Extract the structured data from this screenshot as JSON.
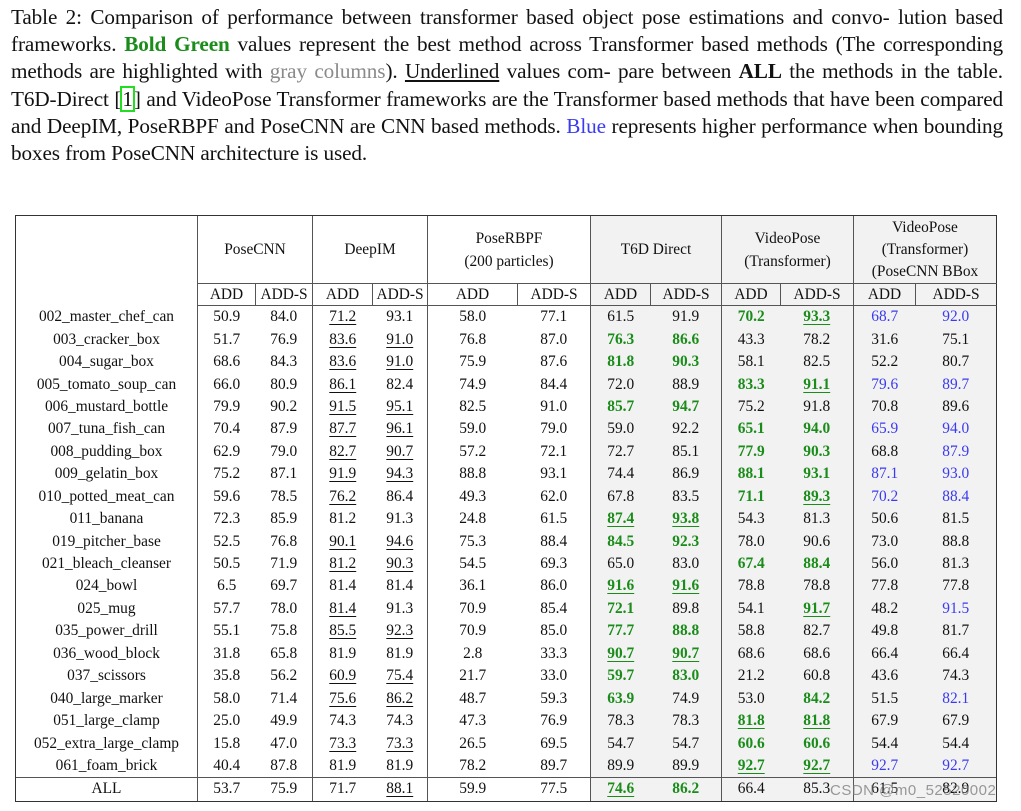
{
  "caption": {
    "p1": "Table 2: Comparison of performance between transformer based object pose estimations and convo- lution based frameworks. ",
    "green_label": "Bold Green",
    "p2": " values represent the best method across Transformer based methods (The corresponding methods are highlighted with ",
    "gray_label": "gray columns",
    "p3": "). ",
    "underline_label": "Underlined",
    "p4": " values com- pare between ",
    "bold_label": "ALL",
    "p5": " the methods in the table. T6D-Direct [",
    "citation": "1",
    "p6": "] and VideoPose Transformer frameworks are the Transformer based methods that have been compared and DeepIM, PoseRBPF and PoseCNN are CNN based methods. ",
    "blue_label": "Blue",
    "p7": " represents higher performance when bounding boxes from PoseCNN architecture is used."
  },
  "colors": {
    "best_green": "#1a8c1a",
    "posecnn_bbox_blue": "#3a3af0",
    "gray_column": "#f2f2f2"
  },
  "table": {
    "methods": [
      {
        "name": "PoseCNN",
        "shaded": false
      },
      {
        "name": "DeepIM",
        "shaded": false
      },
      {
        "name": "PoseRBPF",
        "line2": "(200 particles)",
        "shaded": false
      },
      {
        "name": "T6D Direct",
        "shaded": true
      },
      {
        "name": "VideoPose",
        "line2": "(Transformer)",
        "shaded": true
      },
      {
        "name": "VideoPose",
        "line2": "(Transformer)",
        "line3": "(PoseCNN BBox",
        "shaded": true
      }
    ],
    "metrics": [
      "ADD",
      "ADD-S"
    ],
    "rows": [
      {
        "object": "002_master_chef_can",
        "values": [
          "50.9",
          "84.0",
          "71.2",
          "93.1",
          "58.0",
          "77.1",
          "61.5",
          "91.9",
          "70.2",
          "93.3",
          "68.7",
          "92.0"
        ]
      },
      {
        "object": "003_cracker_box",
        "values": [
          "51.7",
          "76.9",
          "83.6",
          "91.0",
          "76.8",
          "87.0",
          "76.3",
          "86.6",
          "43.3",
          "78.2",
          "31.6",
          "75.1"
        ]
      },
      {
        "object": "004_sugar_box",
        "values": [
          "68.6",
          "84.3",
          "83.6",
          "91.0",
          "75.9",
          "87.6",
          "81.8",
          "90.3",
          "58.1",
          "82.5",
          "52.2",
          "80.7"
        ]
      },
      {
        "object": "005_tomato_soup_can",
        "values": [
          "66.0",
          "80.9",
          "86.1",
          "82.4",
          "74.9",
          "84.4",
          "72.0",
          "88.9",
          "83.3",
          "91.1",
          "79.6",
          "89.7"
        ]
      },
      {
        "object": "006_mustard_bottle",
        "values": [
          "79.9",
          "90.2",
          "91.5",
          "95.1",
          "82.5",
          "91.0",
          "85.7",
          "94.7",
          "75.2",
          "91.8",
          "70.8",
          "89.6"
        ]
      },
      {
        "object": "007_tuna_fish_can",
        "values": [
          "70.4",
          "87.9",
          "87.7",
          "96.1",
          "59.0",
          "79.0",
          "59.0",
          "92.2",
          "65.1",
          "94.0",
          "65.9",
          "94.0"
        ]
      },
      {
        "object": "008_pudding_box",
        "values": [
          "62.9",
          "79.0",
          "82.7",
          "90.7",
          "57.2",
          "72.1",
          "72.7",
          "85.1",
          "77.9",
          "90.3",
          "68.8",
          "87.9"
        ]
      },
      {
        "object": "009_gelatin_box",
        "values": [
          "75.2",
          "87.1",
          "91.9",
          "94.3",
          "88.8",
          "93.1",
          "74.4",
          "86.9",
          "88.1",
          "93.1",
          "87.1",
          "93.0"
        ]
      },
      {
        "object": "010_potted_meat_can",
        "values": [
          "59.6",
          "78.5",
          "76.2",
          "86.4",
          "49.3",
          "62.0",
          "67.8",
          "83.5",
          "71.1",
          "89.3",
          "70.2",
          "88.4"
        ]
      },
      {
        "object": "011_banana",
        "values": [
          "72.3",
          "85.9",
          "81.2",
          "91.3",
          "24.8",
          "61.5",
          "87.4",
          "93.8",
          "54.3",
          "81.3",
          "50.6",
          "81.5"
        ]
      },
      {
        "object": "019_pitcher_base",
        "values": [
          "52.5",
          "76.8",
          "90.1",
          "94.6",
          "75.3",
          "88.4",
          "84.5",
          "92.3",
          "78.0",
          "90.6",
          "73.0",
          "88.8"
        ]
      },
      {
        "object": "021_bleach_cleanser",
        "values": [
          "50.5",
          "71.9",
          "81.2",
          "90.3",
          "54.5",
          "69.3",
          "65.0",
          "83.0",
          "67.4",
          "88.4",
          "56.0",
          "81.3"
        ]
      },
      {
        "object": "024_bowl",
        "values": [
          "6.5",
          "69.7",
          "81.4",
          "81.4",
          "36.1",
          "86.0",
          "91.6",
          "91.6",
          "78.8",
          "78.8",
          "77.8",
          "77.8"
        ]
      },
      {
        "object": "025_mug",
        "values": [
          "57.7",
          "78.0",
          "81.4",
          "91.3",
          "70.9",
          "85.4",
          "72.1",
          "89.8",
          "54.1",
          "91.7",
          "48.2",
          "91.5"
        ]
      },
      {
        "object": "035_power_drill",
        "values": [
          "55.1",
          "75.8",
          "85.5",
          "92.3",
          "70.9",
          "85.0",
          "77.7",
          "88.8",
          "58.8",
          "82.7",
          "49.8",
          "81.7"
        ]
      },
      {
        "object": "036_wood_block",
        "values": [
          "31.8",
          "65.8",
          "81.9",
          "81.9",
          "2.8",
          "33.3",
          "90.7",
          "90.7",
          "68.6",
          "68.6",
          "66.4",
          "66.4"
        ]
      },
      {
        "object": "037_scissors",
        "values": [
          "35.8",
          "56.2",
          "60.9",
          "75.4",
          "21.7",
          "33.0",
          "59.7",
          "83.0",
          "21.2",
          "60.8",
          "43.6",
          "74.3"
        ]
      },
      {
        "object": "040_large_marker",
        "values": [
          "58.0",
          "71.4",
          "75.6",
          "86.2",
          "48.7",
          "59.3",
          "63.9",
          "74.9",
          "53.0",
          "84.2",
          "51.5",
          "82.1"
        ]
      },
      {
        "object": "051_large_clamp",
        "values": [
          "25.0",
          "49.9",
          "74.3",
          "74.3",
          "47.3",
          "76.9",
          "78.3",
          "78.3",
          "81.8",
          "81.8",
          "67.9",
          "67.9"
        ]
      },
      {
        "object": "052_extra_large_clamp",
        "values": [
          "15.8",
          "47.0",
          "73.3",
          "73.3",
          "26.5",
          "69.5",
          "54.7",
          "54.7",
          "60.6",
          "60.6",
          "54.4",
          "54.4"
        ]
      },
      {
        "object": "061_foam_brick",
        "values": [
          "40.4",
          "87.8",
          "81.9",
          "81.9",
          "78.2",
          "89.7",
          "89.9",
          "89.9",
          "92.7",
          "92.7",
          "92.7",
          "92.7"
        ]
      }
    ],
    "total": {
      "object": "ALL",
      "values": [
        "53.7",
        "75.9",
        "71.7",
        "88.1",
        "59.9",
        "77.5",
        "74.6",
        "86.2",
        "66.4",
        "85.3",
        "61.5",
        "82.9"
      ]
    },
    "styles_legend": {
      "g": "bold green (best transformer)",
      "u": "underlined (best overall)",
      "b": "blue (PoseCNN bbox higher)"
    },
    "cell_styles": [
      [
        "",
        "",
        "u",
        "",
        "",
        "",
        "",
        "",
        "g",
        "g u",
        "b",
        "b"
      ],
      [
        "",
        "",
        "u",
        "u",
        "",
        "",
        "g",
        "g",
        "",
        "",
        "",
        ""
      ],
      [
        "",
        "",
        "u",
        "u",
        "",
        "",
        "g",
        "g",
        "",
        "",
        "",
        ""
      ],
      [
        "",
        "",
        "u",
        "",
        "",
        "",
        "",
        "",
        "g",
        "g u",
        "b",
        "b"
      ],
      [
        "",
        "",
        "u",
        "u",
        "",
        "",
        "g",
        "g",
        "",
        "",
        "",
        ""
      ],
      [
        "",
        "",
        "u",
        "u",
        "",
        "",
        "",
        "",
        "g",
        "g",
        "b",
        "b"
      ],
      [
        "",
        "",
        "u",
        "u",
        "",
        "",
        "",
        "",
        "g",
        "g",
        "",
        "b"
      ],
      [
        "",
        "",
        "u",
        "u",
        "",
        "",
        "",
        "",
        "g",
        "g",
        "b",
        "b"
      ],
      [
        "",
        "",
        "u",
        "",
        "",
        "",
        "",
        "",
        "g",
        "g u",
        "b",
        "b"
      ],
      [
        "",
        "",
        "",
        "",
        "",
        "",
        "g u",
        "g u",
        "",
        "",
        "",
        ""
      ],
      [
        "",
        "",
        "u",
        "u",
        "",
        "",
        "g",
        "g",
        "",
        "",
        "",
        ""
      ],
      [
        "",
        "",
        "u",
        "u",
        "",
        "",
        "",
        "",
        "g",
        "g",
        "",
        ""
      ],
      [
        "",
        "",
        "",
        "",
        "",
        "",
        "g u",
        "g u",
        "",
        "",
        "",
        ""
      ],
      [
        "",
        "",
        "u",
        "",
        "",
        "",
        "g",
        "",
        "",
        "g u",
        "",
        "b"
      ],
      [
        "",
        "",
        "u",
        "u",
        "",
        "",
        "g",
        "g",
        "",
        "",
        "",
        ""
      ],
      [
        "",
        "",
        "",
        "",
        "",
        "",
        "g u",
        "g u",
        "",
        "",
        "",
        ""
      ],
      [
        "",
        "",
        "u",
        "u",
        "",
        "",
        "g",
        "g",
        "",
        "",
        "",
        ""
      ],
      [
        "",
        "",
        "u",
        "u",
        "",
        "",
        "g",
        "",
        "",
        "g",
        "",
        "b"
      ],
      [
        "",
        "",
        "",
        "",
        "",
        "",
        "",
        "",
        "g u",
        "g u",
        "",
        ""
      ],
      [
        "",
        "",
        "u",
        "u",
        "",
        "",
        "",
        "",
        "g",
        "g",
        "",
        ""
      ],
      [
        "",
        "",
        "",
        "",
        "",
        "",
        "",
        "",
        "g u",
        "g u",
        "b",
        "b"
      ]
    ],
    "total_styles": [
      "",
      "",
      "",
      "u",
      "",
      "",
      "g u",
      "g",
      "",
      "",
      "",
      ""
    ]
  },
  "watermark": "CSDN @m0_52520002"
}
